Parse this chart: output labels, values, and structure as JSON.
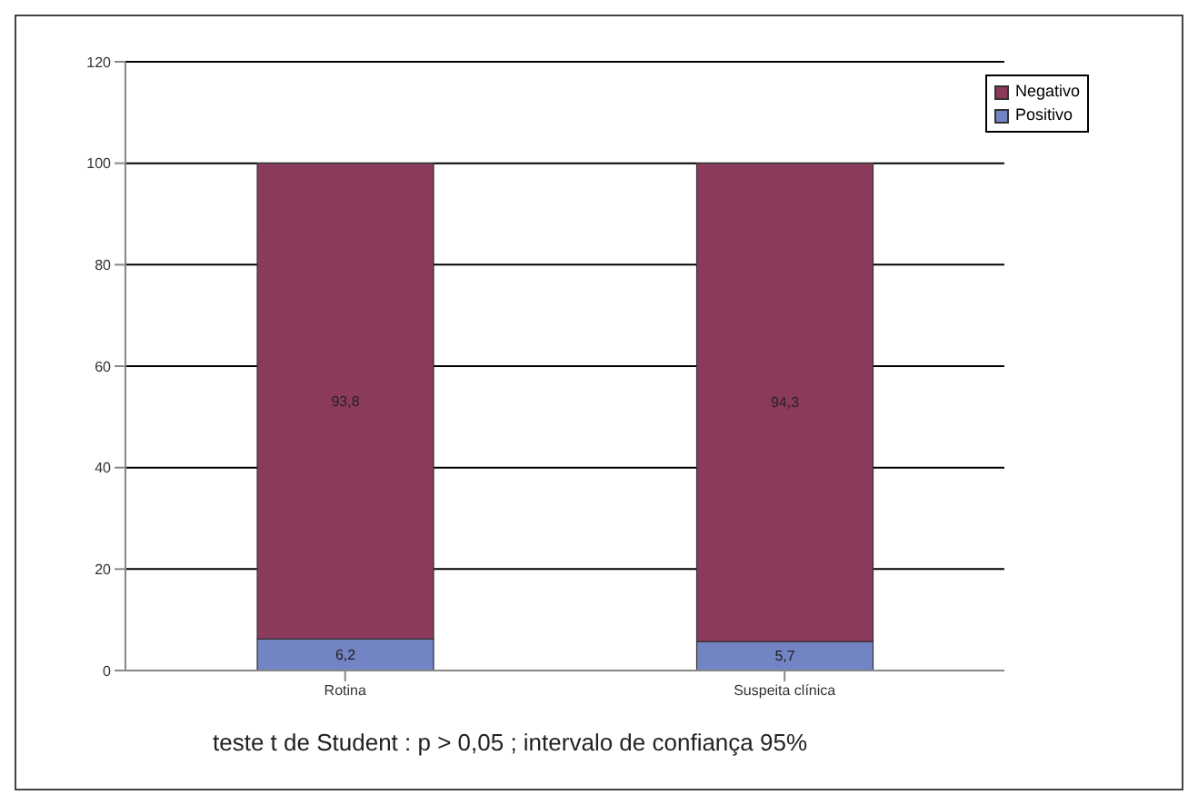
{
  "chart_data": {
    "type": "bar",
    "stacked": true,
    "categories": [
      "Rotina",
      "Suspeita clínica"
    ],
    "series": [
      {
        "name": "Positivo",
        "color": "#7384c4",
        "values": [
          6.2,
          5.7
        ],
        "value_labels": [
          "6,2",
          "5,7"
        ]
      },
      {
        "name": "Negativo",
        "color": "#8b3a5c",
        "values": [
          93.8,
          94.3
        ],
        "value_labels": [
          "93,8",
          "94,3"
        ]
      }
    ],
    "ylim": [
      0,
      120
    ],
    "yticks": [
      0,
      20,
      40,
      60,
      80,
      100,
      120
    ],
    "grid": "y",
    "legend": "top right",
    "annotations": [
      "teste t de Student : p > 0,05 ; intervalo de confiança 95%"
    ]
  }
}
